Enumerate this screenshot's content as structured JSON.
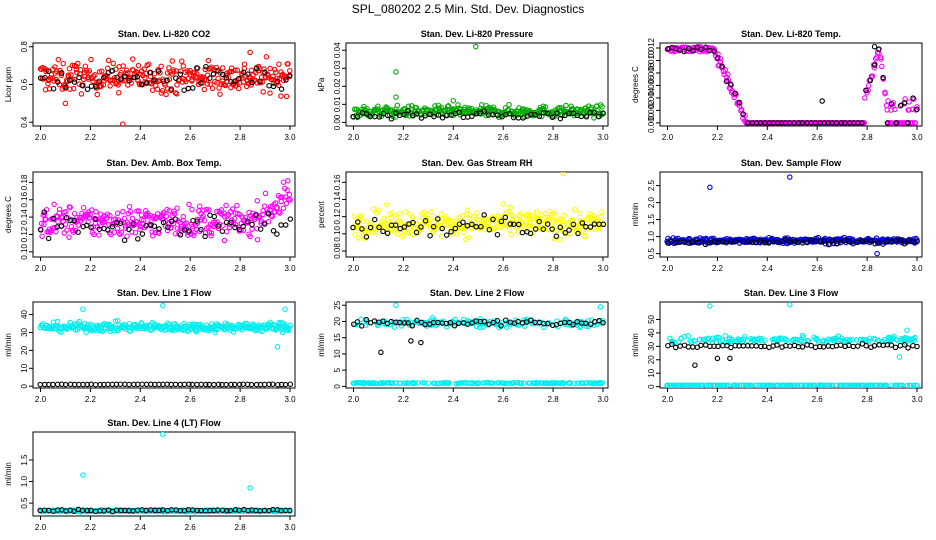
{
  "figure_title": "SPL_080202  2.5 Min. Std. Dev. Diagnostics",
  "chart_data": [
    {
      "type": "scatter",
      "title": "Stan. Dev. Li-820 CO2",
      "ylabel": "Licor ppm",
      "xlim": [
        1.97,
        3.02
      ],
      "ylim": [
        0.38,
        0.82
      ],
      "xticks": [
        "2.0",
        "2.2",
        "2.4",
        "2.6",
        "2.8",
        "3.0"
      ],
      "yticks": [
        0.4,
        0.6,
        0.8
      ],
      "ytick_labels": [
        "0.4",
        "0.6",
        "0.8"
      ],
      "series": [
        {
          "name": "primary",
          "color": "#ff0000",
          "n": 320,
          "base": 0.64,
          "spread": 0.08,
          "outliers": [
            [
              2.33,
              0.39
            ],
            [
              2.1,
              0.5
            ],
            [
              2.84,
              0.77
            ]
          ]
        },
        {
          "name": "reference",
          "color": "#000000",
          "n": 60,
          "base": 0.63,
          "spread": 0.07,
          "outliers": []
        }
      ]
    },
    {
      "type": "scatter",
      "title": "Stan. Dev. Li-820 Pressure",
      "ylabel": "kPa",
      "xlim": [
        1.97,
        3.02
      ],
      "ylim": [
        -0.002,
        0.044
      ],
      "xticks": [
        "2.0",
        "2.2",
        "2.4",
        "2.6",
        "2.8",
        "3.0"
      ],
      "yticks": [
        0.0,
        0.01,
        0.02,
        0.03,
        0.04
      ],
      "ytick_labels": [
        "0.00",
        "0.01",
        "0.02",
        "0.03",
        "0.04"
      ],
      "series": [
        {
          "name": "primary",
          "color": "#00aa00",
          "n": 320,
          "base": 0.006,
          "spread": 0.003,
          "outliers": [
            [
              2.49,
              0.042
            ],
            [
              2.17,
              0.028
            ],
            [
              2.17,
              0.014
            ],
            [
              2.4,
              0.012
            ]
          ]
        },
        {
          "name": "reference",
          "color": "#000000",
          "n": 60,
          "base": 0.004,
          "spread": 0.002,
          "outliers": []
        }
      ]
    },
    {
      "type": "scatter",
      "title": "Stan. Dev. Li-820 Temp.",
      "ylabel": "degrees C",
      "xlim": [
        1.97,
        3.02
      ],
      "ylim": [
        -0.0005,
        0.0128
      ],
      "xticks": [
        "2.0",
        "2.2",
        "2.4",
        "2.6",
        "2.8",
        "3.0"
      ],
      "yticks": [
        0,
        0.002,
        0.004,
        0.006,
        0.008,
        0.01,
        0.012
      ],
      "ytick_labels": [
        "0.000",
        "0.002",
        "0.004",
        "0.006",
        "0.008",
        "0.010",
        "0.012"
      ],
      "series": [
        {
          "name": "primary",
          "color": "#ff00ff",
          "n": 300,
          "shape": "temp",
          "outliers": []
        },
        {
          "name": "reference",
          "color": "#000000",
          "n": 60,
          "shape": "temp",
          "outliers": [
            [
              2.62,
              0.0035
            ],
            [
              2.83,
              0.0122
            ]
          ]
        }
      ]
    },
    {
      "type": "scatter",
      "title": "Stan. Dev. Amb. Box Temp.",
      "ylabel": "degrees C",
      "xlim": [
        1.97,
        3.02
      ],
      "ylim": [
        0.094,
        0.192
      ],
      "xticks": [
        "2.0",
        "2.2",
        "2.4",
        "2.6",
        "2.8",
        "3.0"
      ],
      "yticks": [
        0.1,
        0.12,
        0.14,
        0.16,
        0.18
      ],
      "ytick_labels": [
        "0.10",
        "0.12",
        "0.14",
        "0.16",
        "0.18"
      ],
      "series": [
        {
          "name": "primary",
          "color": "#ff00ff",
          "n": 320,
          "base": 0.135,
          "spread": 0.018,
          "trend": "rise",
          "outliers": []
        },
        {
          "name": "reference",
          "color": "#000000",
          "n": 60,
          "base": 0.13,
          "spread": 0.015,
          "outliers": []
        }
      ]
    },
    {
      "type": "scatter",
      "title": "Stan. Dev. Gas Stream RH",
      "ylabel": "percent",
      "xlim": [
        1.97,
        3.02
      ],
      "ylim": [
        0.073,
        0.172
      ],
      "xticks": [
        "2.0",
        "2.2",
        "2.4",
        "2.6",
        "2.8",
        "3.0"
      ],
      "yticks": [
        0.08,
        0.1,
        0.12,
        0.14,
        0.16
      ],
      "ytick_labels": [
        "0.08",
        "0.10",
        "0.12",
        "0.14",
        "0.16"
      ],
      "series": [
        {
          "name": "primary",
          "color": "#ffff00",
          "n": 320,
          "base": 0.112,
          "spread": 0.015,
          "outliers": [
            [
              2.84,
              0.17
            ]
          ]
        },
        {
          "name": "reference",
          "color": "#000000",
          "n": 60,
          "base": 0.108,
          "spread": 0.012,
          "outliers": []
        }
      ]
    },
    {
      "type": "scatter",
      "title": "Stan. Dev. Sample Flow",
      "ylabel": "ml/min",
      "xlim": [
        1.97,
        3.02
      ],
      "ylim": [
        0.4,
        2.9
      ],
      "xticks": [
        "2.0",
        "2.2",
        "2.4",
        "2.6",
        "2.8",
        "3.0"
      ],
      "yticks": [
        0.5,
        1.0,
        1.5,
        2.0,
        2.5
      ],
      "ytick_labels": [
        "0.5",
        "1.0",
        "1.5",
        "2.0",
        "2.5"
      ],
      "series": [
        {
          "name": "primary",
          "color": "#0000dd",
          "n": 320,
          "base": 0.88,
          "spread": 0.08,
          "outliers": [
            [
              2.17,
              2.45
            ],
            [
              2.49,
              2.75
            ],
            [
              2.84,
              0.5
            ]
          ]
        },
        {
          "name": "reference",
          "color": "#000000",
          "n": 60,
          "base": 0.85,
          "spread": 0.07,
          "outliers": []
        }
      ]
    },
    {
      "type": "scatter",
      "title": "Stan. Dev. Line 1 Flow",
      "ylabel": "ml/min",
      "xlim": [
        1.97,
        3.02
      ],
      "ylim": [
        -1,
        47
      ],
      "xticks": [
        "2.0",
        "2.2",
        "2.4",
        "2.6",
        "2.8",
        "3.0"
      ],
      "yticks": [
        0,
        10,
        20,
        30,
        40
      ],
      "ytick_labels": [
        "0",
        "10",
        "20",
        "30",
        "40"
      ],
      "series": [
        {
          "name": "primary",
          "color": "#00eeee",
          "n": 320,
          "base": 33,
          "spread": 2.5,
          "outliers": [
            [
              2.95,
              22
            ],
            [
              2.98,
              43
            ],
            [
              2.17,
              43
            ],
            [
              2.49,
              45
            ]
          ]
        },
        {
          "name": "reference",
          "color": "#000000",
          "n": 60,
          "base": 1.0,
          "spread": 0.15,
          "outliers": []
        }
      ]
    },
    {
      "type": "scatter",
      "title": "Stan. Dev. Line 2 Flow",
      "ylabel": "ml/min",
      "xlim": [
        1.97,
        3.02
      ],
      "ylim": [
        -0.5,
        26
      ],
      "xticks": [
        "2.0",
        "2.2",
        "2.4",
        "2.6",
        "2.8",
        "3.0"
      ],
      "yticks": [
        0,
        5,
        10,
        15,
        20,
        25
      ],
      "ytick_labels": [
        "0",
        "5",
        "10",
        "15",
        "20",
        "25"
      ],
      "series": [
        {
          "name": "primary",
          "color": "#00eeee",
          "n": 320,
          "base": 19.5,
          "spread": 1.2,
          "low_band": 1.0,
          "outliers": [
            [
              2.99,
              24.5
            ],
            [
              2.17,
              25
            ]
          ]
        },
        {
          "name": "reference",
          "color": "#000000",
          "n": 60,
          "base": 19.5,
          "spread": 1.0,
          "outliers": [
            [
              2.11,
              10.5
            ],
            [
              2.23,
              14
            ],
            [
              2.27,
              13.5
            ]
          ]
        }
      ]
    },
    {
      "type": "scatter",
      "title": "Stan. Dev. Line 3 Flow",
      "ylabel": "ml/min",
      "xlim": [
        1.97,
        3.02
      ],
      "ylim": [
        -1,
        63
      ],
      "xticks": [
        "2.0",
        "2.2",
        "2.4",
        "2.6",
        "2.8",
        "3.0"
      ],
      "yticks": [
        0,
        10,
        20,
        30,
        40,
        50
      ],
      "ytick_labels": [
        "0",
        "10",
        "20",
        "30",
        "40",
        "50"
      ],
      "series": [
        {
          "name": "primary",
          "color": "#00eeee",
          "n": 320,
          "base": 35,
          "spread": 2.5,
          "low_band": 1.0,
          "outliers": [
            [
              2.17,
              60
            ],
            [
              2.49,
              61
            ],
            [
              2.96,
              42
            ],
            [
              2.93,
              22
            ]
          ]
        },
        {
          "name": "reference",
          "color": "#000000",
          "n": 60,
          "base": 30,
          "spread": 1.5,
          "outliers": [
            [
              2.11,
              16
            ],
            [
              2.2,
              21
            ],
            [
              2.25,
              21
            ]
          ]
        }
      ]
    },
    {
      "type": "scatter",
      "title": "Stan. Dev. Line 4 (LT) Flow",
      "ylabel": "ml/min",
      "xlim": [
        1.97,
        3.02
      ],
      "ylim": [
        0.2,
        2.15
      ],
      "xticks": [
        "2.0",
        "2.2",
        "2.4",
        "2.6",
        "2.8",
        "3.0"
      ],
      "yticks": [
        0.5,
        1.0,
        1.5
      ],
      "ytick_labels": [
        "0.5",
        "1.0",
        "1.5"
      ],
      "series": [
        {
          "name": "primary",
          "color": "#00eeee",
          "n": 320,
          "base": 0.32,
          "spread": 0.02,
          "outliers": [
            [
              2.17,
              1.15
            ],
            [
              2.49,
              2.1
            ],
            [
              2.84,
              0.85
            ]
          ]
        },
        {
          "name": "reference",
          "color": "#000000",
          "n": 60,
          "base": 0.33,
          "spread": 0.02,
          "outliers": []
        }
      ]
    }
  ]
}
